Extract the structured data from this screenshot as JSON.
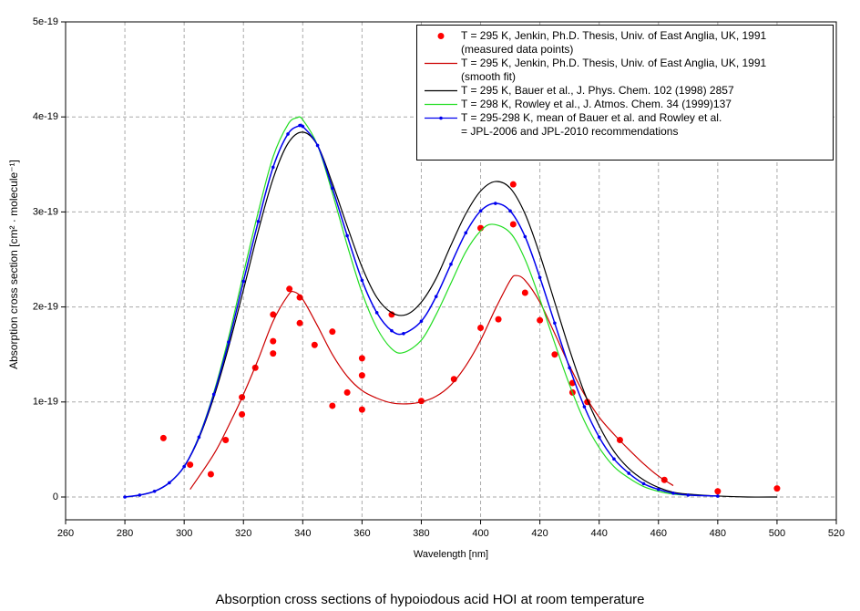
{
  "chart_data": {
    "type": "line",
    "title": "Absorption cross sections of hypoiodous acid HOI at room temperature",
    "xlabel": "Wavelength [nm]",
    "ylabel": "Absorption cross section [cm² · molecule⁻¹]",
    "xlim": [
      260,
      520
    ],
    "xticks": [
      260,
      280,
      300,
      320,
      340,
      360,
      380,
      400,
      420,
      440,
      460,
      480,
      500,
      520
    ],
    "ylim": [
      -2.4e-20,
      5e-19
    ],
    "yticks": [
      0,
      1e-19,
      2e-19,
      3e-19,
      4e-19,
      5e-19
    ],
    "grid": true,
    "legend": "upper right",
    "series": [
      {
        "name": "T = 295 K, Jenkin, Ph.D. Thesis, Univ. of East Anglia, UK, 1991\n(measured data points)",
        "color": "#ff0000",
        "style": "markers",
        "x": [
          293,
          302,
          309,
          314,
          319.5,
          319.5,
          324,
          330,
          330,
          330,
          335.5,
          339,
          339,
          344,
          350,
          350,
          355,
          360,
          360,
          360,
          370,
          380,
          391,
          400,
          400,
          406,
          411,
          411,
          415,
          420,
          425,
          431,
          431,
          436,
          447,
          462,
          480,
          500
        ],
        "values": [
          6.2e-20,
          3.4e-20,
          2.4e-20,
          6e-20,
          1.05e-19,
          8.7e-20,
          1.36e-19,
          1.92e-19,
          1.64e-19,
          1.51e-19,
          2.19e-19,
          2.1e-19,
          1.83e-19,
          1.6e-19,
          1.74e-19,
          9.6e-20,
          1.1e-19,
          1.46e-19,
          1.28e-19,
          9.2e-20,
          1.92e-19,
          1.01e-19,
          1.24e-19,
          2.83e-19,
          1.78e-19,
          1.87e-19,
          3.29e-19,
          2.87e-19,
          2.15e-19,
          1.86e-19,
          1.5e-19,
          1.2e-19,
          1.1e-19,
          1e-19,
          6e-20,
          1.8e-20,
          6e-21,
          9e-21
        ]
      },
      {
        "name": "T = 295 K, Jenkin, Ph.D. Thesis, Univ. of East Anglia, UK, 1991\n(smooth fit)",
        "color": "#cc0000",
        "style": "line",
        "x": [
          302,
          310,
          315,
          320,
          325,
          330,
          335,
          337,
          340,
          345,
          350,
          355,
          360,
          365,
          370,
          375,
          380,
          385,
          390,
          395,
          400,
          405,
          410,
          412,
          415,
          420,
          425,
          430,
          435,
          440,
          445,
          450,
          455,
          460,
          465
        ],
        "values": [
          8e-21,
          4.5e-20,
          7.5e-20,
          1.08e-19,
          1.45e-19,
          1.85e-19,
          2.12e-19,
          2.16e-19,
          2.08e-19,
          1.8e-19,
          1.5e-19,
          1.27e-19,
          1.12e-19,
          1.04e-19,
          9.9e-20,
          9.8e-20,
          1e-19,
          1.06e-19,
          1.18e-19,
          1.38e-19,
          1.65e-19,
          1.98e-19,
          2.28e-19,
          2.33e-19,
          2.28e-19,
          2.05e-19,
          1.72e-19,
          1.38e-19,
          1.08e-19,
          8.4e-20,
          6.6e-20,
          5e-20,
          3.5e-20,
          2.2e-20,
          1.2e-20
        ]
      },
      {
        "name": "T = 295 K, Bauer et al., J. Phys. Chem. 102 (1998) 2857",
        "color": "#000000",
        "style": "line",
        "x": [
          280,
          285,
          290,
          295,
          300,
          305,
          310,
          315,
          320,
          325,
          330,
          335,
          340,
          345,
          350,
          355,
          360,
          365,
          370,
          375,
          380,
          385,
          390,
          395,
          400,
          405,
          410,
          415,
          420,
          425,
          430,
          435,
          440,
          445,
          450,
          455,
          460,
          465,
          470,
          480,
          490,
          500
        ],
        "values": [
          0,
          2e-21,
          6e-21,
          1.5e-20,
          3.2e-20,
          6.2e-20,
          1.05e-19,
          1.58e-19,
          2.18e-19,
          2.8e-19,
          3.35e-19,
          3.72e-19,
          3.84e-19,
          3.7e-19,
          3.3e-19,
          2.85e-19,
          2.42e-19,
          2.1e-19,
          1.94e-19,
          1.92e-19,
          2.05e-19,
          2.3e-19,
          2.65e-19,
          2.98e-19,
          3.22e-19,
          3.32e-19,
          3.25e-19,
          2.98e-19,
          2.55e-19,
          2.05e-19,
          1.55e-19,
          1.1e-19,
          7.5e-20,
          4.8e-20,
          3e-20,
          1.8e-20,
          1e-20,
          5e-21,
          3e-21,
          1e-21,
          0,
          0
        ]
      },
      {
        "name": "T = 298 K, Rowley et al., J. Atmos. Chem. 34 (1999)137",
        "color": "#22dd22",
        "style": "line",
        "x": [
          280,
          285,
          290,
          295,
          300,
          305,
          310,
          315,
          320,
          325,
          330,
          335,
          338,
          340,
          345,
          350,
          355,
          360,
          365,
          370,
          374,
          380,
          385,
          390,
          395,
          400,
          404,
          410,
          415,
          420,
          425,
          430,
          435,
          440,
          445,
          450,
          455,
          460,
          465,
          470,
          480
        ],
        "values": [
          0,
          2e-21,
          6e-21,
          1.5e-20,
          3.2e-20,
          6.4e-20,
          1.1e-19,
          1.68e-19,
          2.35e-19,
          3e-19,
          3.58e-19,
          3.92e-19,
          3.99e-19,
          3.97e-19,
          3.7e-19,
          3.2e-19,
          2.65e-19,
          2.15e-19,
          1.78e-19,
          1.56e-19,
          1.52e-19,
          1.65e-19,
          1.92e-19,
          2.25e-19,
          2.58e-19,
          2.8e-19,
          2.87e-19,
          2.78e-19,
          2.5e-19,
          2.08e-19,
          1.62e-19,
          1.18e-19,
          8e-20,
          5.2e-20,
          3.2e-20,
          2e-20,
          1.1e-20,
          6e-21,
          3e-21,
          2e-21,
          1e-21
        ]
      },
      {
        "name": "T = 295-298 K, mean of Bauer et al. and Rowley et al.\n= JPL-2006 and JPL-2010 recommendations",
        "color": "#0000ee",
        "style": "line-markers",
        "x": [
          280,
          285,
          290,
          295,
          300,
          305,
          310,
          315,
          320,
          325,
          330,
          335,
          339,
          340,
          345,
          350,
          355,
          360,
          365,
          370,
          374,
          380,
          385,
          390,
          395,
          400,
          405,
          410,
          415,
          420,
          425,
          430,
          435,
          440,
          445,
          450,
          455,
          460,
          465,
          470,
          480
        ],
        "values": [
          0,
          2e-21,
          6e-21,
          1.5e-20,
          3.2e-20,
          6.3e-20,
          1.08e-19,
          1.63e-19,
          2.27e-19,
          2.9e-19,
          3.47e-19,
          3.82e-19,
          3.91e-19,
          3.9e-19,
          3.7e-19,
          3.25e-19,
          2.75e-19,
          2.28e-19,
          1.94e-19,
          1.75e-19,
          1.72e-19,
          1.85e-19,
          2.11e-19,
          2.45e-19,
          2.78e-19,
          3.01e-19,
          3.09e-19,
          3.01e-19,
          2.74e-19,
          2.31e-19,
          1.83e-19,
          1.36e-19,
          9.5e-20,
          6.3e-20,
          4e-20,
          2.5e-20,
          1.4e-20,
          8e-21,
          4e-21,
          2e-21,
          1e-21
        ]
      }
    ]
  }
}
